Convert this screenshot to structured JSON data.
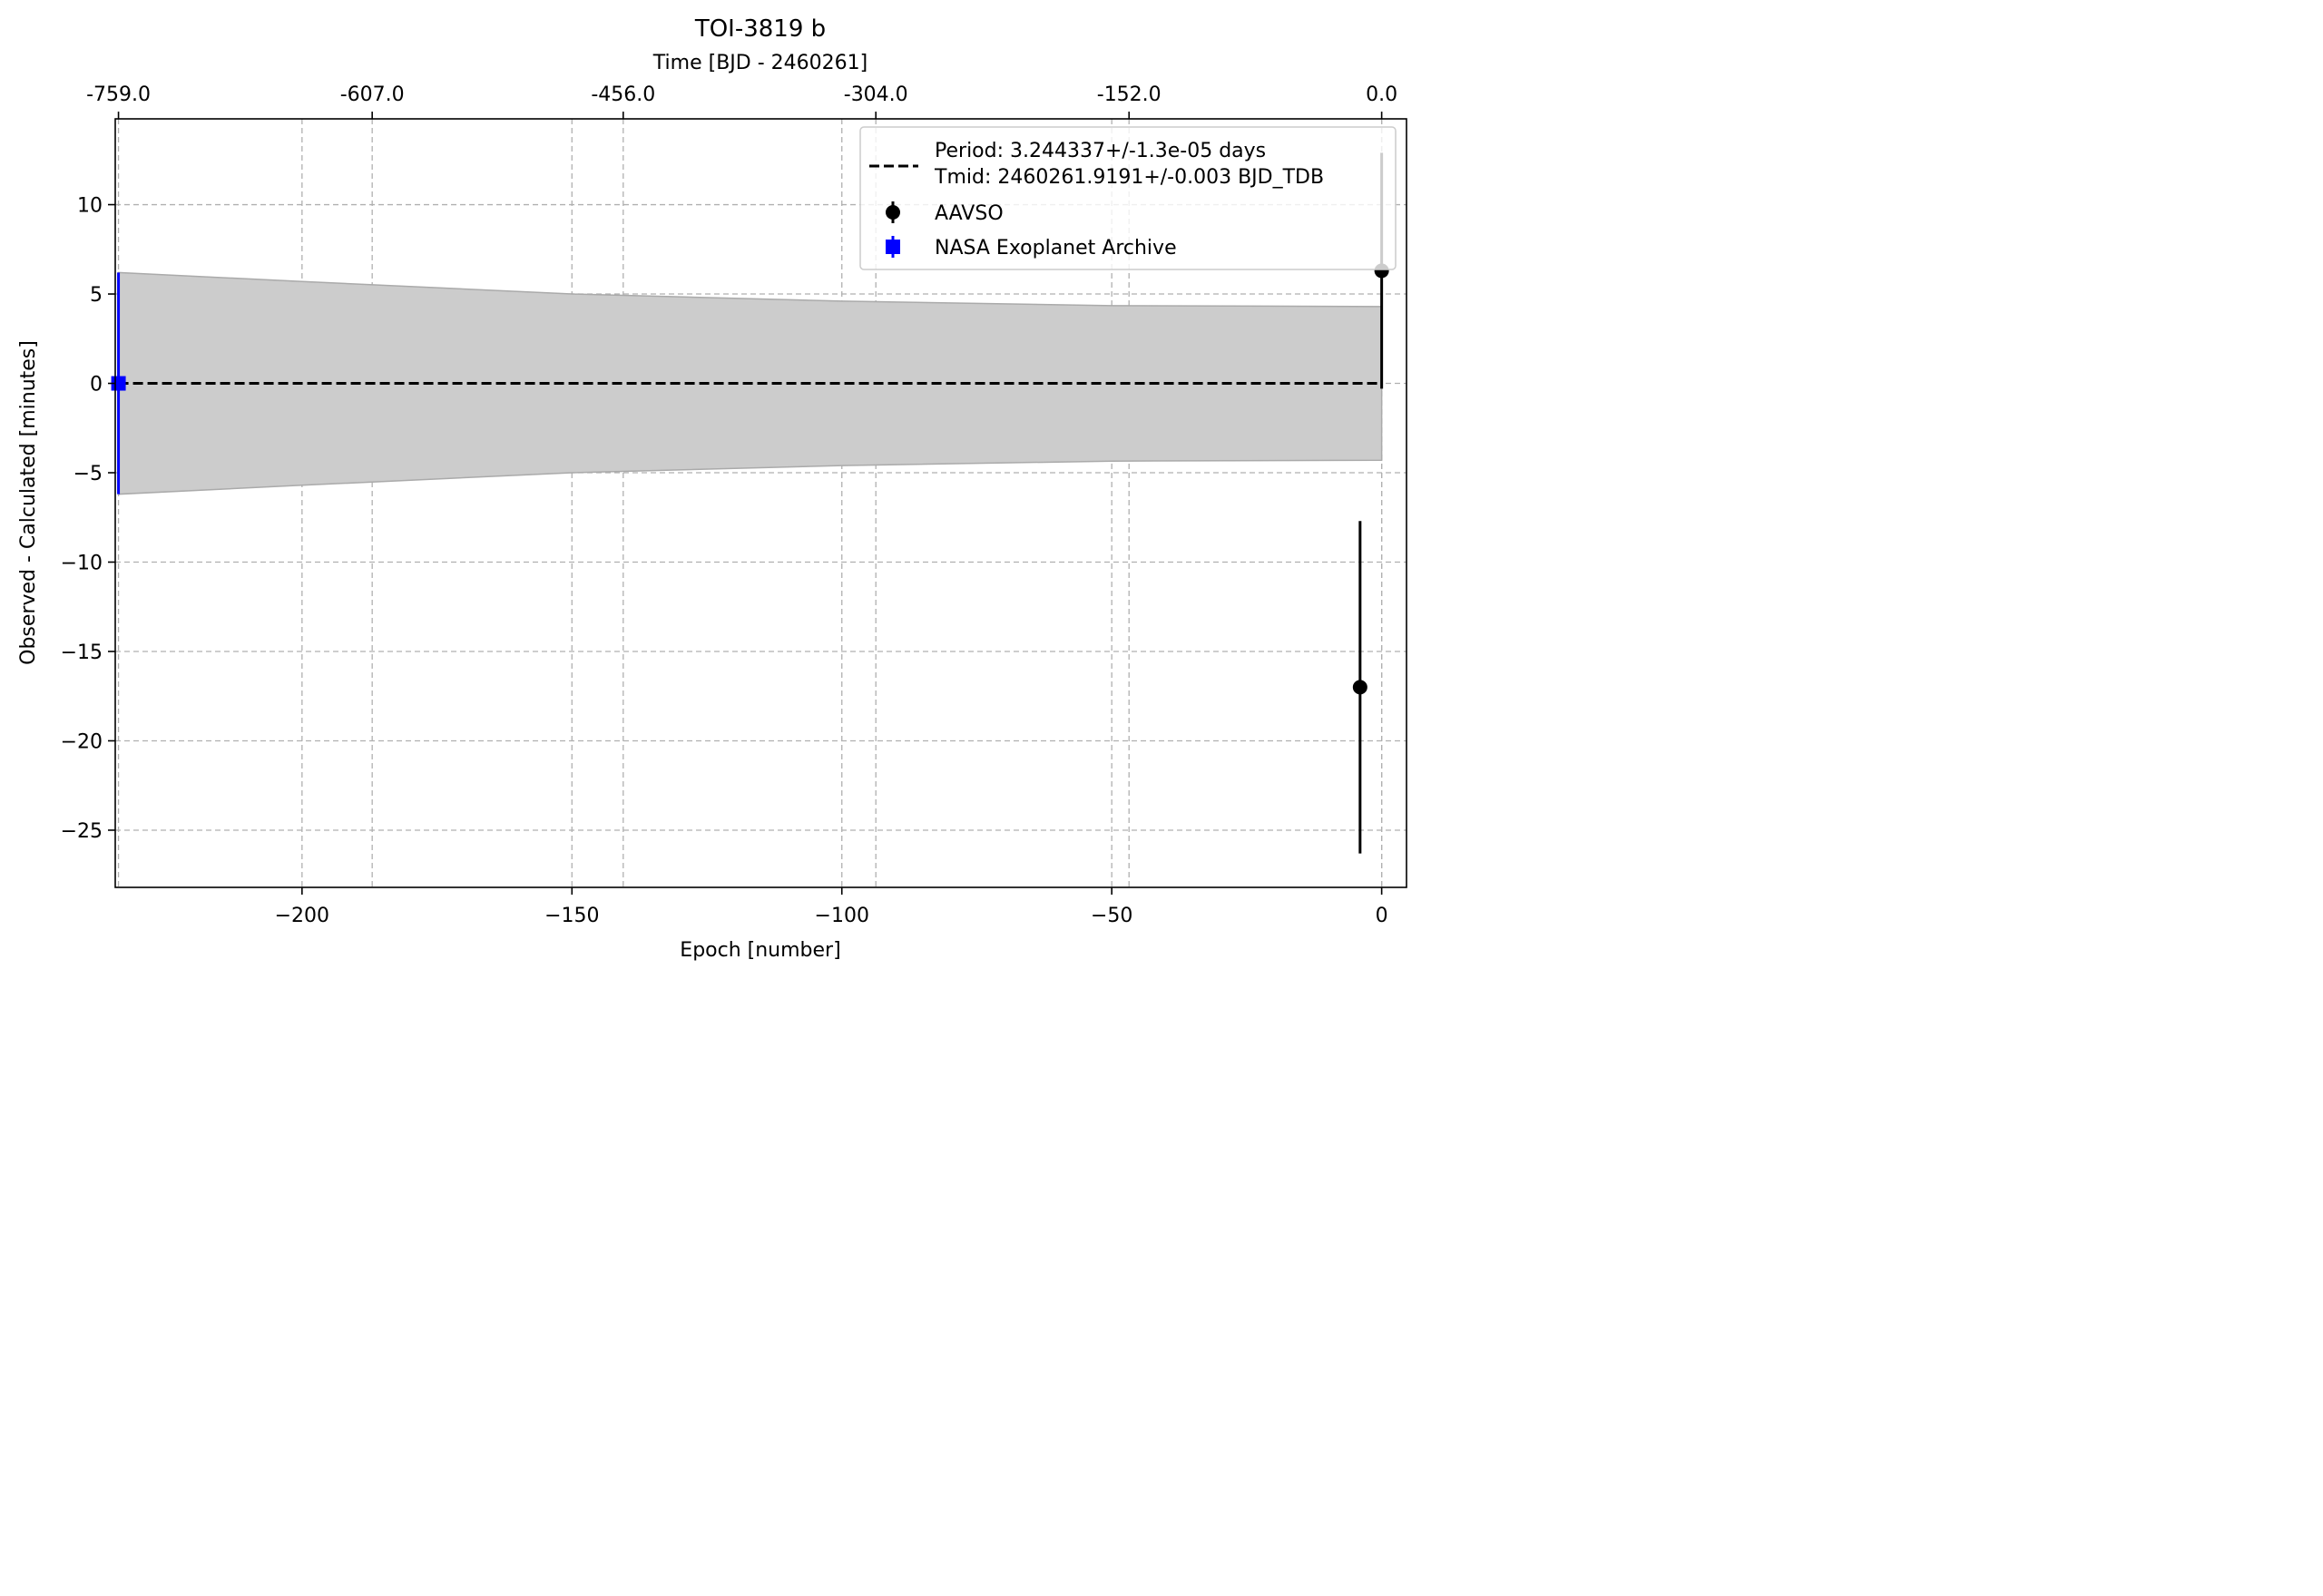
{
  "chart_data": {
    "type": "scatter",
    "title": "TOI-3819 b",
    "xlabel": "Epoch [number]",
    "ylabel": "Observed - Calculated [minutes]",
    "top_xlabel": "Time [BJD - 2460261]",
    "xlim": [
      -234.6,
      4.6
    ],
    "ylim": [
      -28.2,
      14.8
    ],
    "x_ticks": [
      {
        "value": -200,
        "label": "−200"
      },
      {
        "value": -150,
        "label": "−150"
      },
      {
        "value": -100,
        "label": "−100"
      },
      {
        "value": -50,
        "label": "−50"
      },
      {
        "value": 0,
        "label": "0"
      }
    ],
    "y_ticks": [
      {
        "value": 10,
        "label": "10"
      },
      {
        "value": 5,
        "label": "5"
      },
      {
        "value": 0,
        "label": "0"
      },
      {
        "value": -5,
        "label": "−5"
      },
      {
        "value": -10,
        "label": "−10"
      },
      {
        "value": -15,
        "label": "−15"
      },
      {
        "value": -20,
        "label": "−20"
      },
      {
        "value": -25,
        "label": "−25"
      }
    ],
    "top_x_ticks": [
      {
        "epoch": -234,
        "label": "-759.0"
      },
      {
        "epoch": -187,
        "label": "-607.0"
      },
      {
        "epoch": -140.5,
        "label": "-456.0"
      },
      {
        "epoch": -93.7,
        "label": "-304.0"
      },
      {
        "epoch": -46.8,
        "label": "-152.0"
      },
      {
        "epoch": 0,
        "label": "0.0"
      }
    ],
    "grid": true,
    "legend_position": "top-right",
    "fit_line": {
      "label_line1": "Period: 3.244337+/-1.3e-05 days",
      "label_line2": "Tmid: 2460261.9191+/-0.003 BJD_TDB",
      "y": 0,
      "color": "#000000"
    },
    "uncertainty_band": {
      "x": [
        -234,
        -200,
        -150,
        -100,
        -50,
        0
      ],
      "upper": [
        6.2,
        5.7,
        5.0,
        4.6,
        4.35,
        4.3
      ],
      "lower": [
        -6.2,
        -5.7,
        -5.0,
        -4.6,
        -4.35,
        -4.3
      ],
      "color": "#cccccc",
      "edge_color": "#aaaaaa"
    },
    "series": [
      {
        "name": "AAVSO",
        "marker": "circle",
        "color": "#000000",
        "points": [
          {
            "x": 0,
            "y": 6.3,
            "yerr": 6.6
          },
          {
            "x": -4,
            "y": -17.0,
            "yerr": 9.3
          }
        ]
      },
      {
        "name": "NASA Exoplanet Archive",
        "marker": "square",
        "color": "#0000ff",
        "points": [
          {
            "x": -234,
            "y": 0.0,
            "yerr": 6.2
          }
        ]
      }
    ]
  }
}
